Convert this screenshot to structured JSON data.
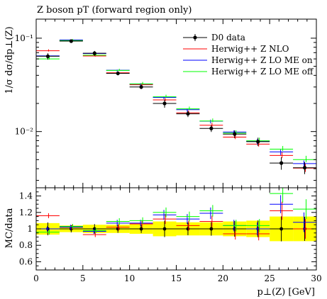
{
  "chart_data": [
    {
      "type": "scatter",
      "title": "Z boson pT (forward region only)",
      "ylabel": "1/σ dσ/dp⊥(Z)",
      "yscale": "log",
      "ylim": [
        0.0025,
        0.16
      ],
      "xlim": [
        0,
        30
      ],
      "yticks": [
        {
          "value": 0.1,
          "label": "10⁻¹"
        },
        {
          "value": 0.01,
          "label": "10⁻²"
        }
      ],
      "legend_position": "top-right",
      "bin_edges": [
        0,
        2.5,
        5,
        7.5,
        10,
        12.5,
        15,
        17.5,
        20,
        22.5,
        25,
        27.5,
        30
      ],
      "x": [
        1.25,
        3.75,
        6.25,
        8.75,
        11.25,
        13.75,
        16.25,
        18.75,
        21.25,
        23.75,
        26.25,
        28.75
      ],
      "series": [
        {
          "name": "D0 data",
          "color": "#000000",
          "marker": "dot",
          "values": [
            0.064,
            0.093,
            0.069,
            0.042,
            0.03,
            0.02,
            0.0155,
            0.0108,
            0.0094,
            0.0078,
            0.0046,
            0.0041
          ],
          "errors": [
            0.005,
            0.004,
            0.004,
            0.002,
            0.0015,
            0.002,
            0.0012,
            0.0009,
            0.0009,
            0.0008,
            0.0007,
            0.0006
          ]
        },
        {
          "name": "Herwig++ Z NLO",
          "color": "#ff0000",
          "values": [
            0.074,
            0.095,
            0.065,
            0.043,
            0.032,
            0.022,
            0.016,
            0.0118,
            0.0088,
            0.0074,
            0.0056,
            0.0041
          ],
          "errors": [
            0.002,
            0.002,
            0.0015,
            0.001,
            0.001,
            0.0008,
            0.0007,
            0.0006,
            0.0005,
            0.0005,
            0.0004,
            0.0004
          ]
        },
        {
          "name": "Herwig++ Z LO ME on",
          "color": "#0000ff",
          "values": [
            0.064,
            0.095,
            0.068,
            0.045,
            0.032,
            0.023,
            0.017,
            0.0128,
            0.0098,
            0.0078,
            0.006,
            0.0045
          ],
          "errors": [
            0.002,
            0.002,
            0.0015,
            0.001,
            0.001,
            0.0008,
            0.0007,
            0.0006,
            0.0005,
            0.0005,
            0.0004,
            0.0004
          ]
        },
        {
          "name": "Herwig++ Z LO ME off",
          "color": "#00ff00",
          "values": [
            0.061,
            0.096,
            0.067,
            0.046,
            0.033,
            0.024,
            0.0178,
            0.0132,
            0.0098,
            0.0081,
            0.0066,
            0.0051
          ],
          "errors": [
            0.002,
            0.002,
            0.0015,
            0.001,
            0.001,
            0.0008,
            0.0007,
            0.0006,
            0.0005,
            0.0005,
            0.0004,
            0.0004
          ]
        }
      ]
    },
    {
      "type": "scatter",
      "xlabel": "p⊥(Z) [GeV]",
      "ylabel": "MC/data",
      "xlim": [
        0,
        30
      ],
      "ylim": [
        0.5,
        1.5
      ],
      "xticks": [
        0,
        5,
        10,
        15,
        20,
        25,
        30
      ],
      "yticks": [
        0.6,
        0.8,
        1.0,
        1.2,
        1.4
      ],
      "ytick_labels": [
        "0.6",
        "0.8",
        "1",
        "1.2",
        "1.4"
      ],
      "reference_line": 1.0,
      "band_color": "#ffff00",
      "band": {
        "lower": [
          0.93,
          0.96,
          0.95,
          0.95,
          0.94,
          0.91,
          0.92,
          0.92,
          0.91,
          0.9,
          0.85,
          0.85
        ],
        "upper": [
          1.07,
          1.04,
          1.05,
          1.05,
          1.06,
          1.09,
          1.08,
          1.08,
          1.09,
          1.1,
          1.15,
          1.15
        ]
      },
      "series": [
        {
          "name": "Herwig++ Z NLO",
          "color": "#ff0000",
          "values": [
            1.16,
            1.02,
            0.93,
            1.02,
            1.06,
            1.12,
            1.04,
            1.09,
            0.94,
            0.94,
            1.22,
            1.0
          ],
          "errors": [
            0.03,
            0.03,
            0.03,
            0.04,
            0.04,
            0.06,
            0.06,
            0.07,
            0.07,
            0.08,
            0.11,
            0.12
          ]
        },
        {
          "name": "Herwig++ Z LO ME on",
          "color": "#0000ff",
          "values": [
            1.0,
            1.02,
            0.97,
            1.07,
            1.07,
            1.17,
            1.12,
            1.19,
            1.04,
            1.0,
            1.3,
            1.08
          ],
          "errors": [
            0.03,
            0.03,
            0.03,
            0.04,
            0.04,
            0.06,
            0.06,
            0.07,
            0.07,
            0.08,
            0.11,
            0.12
          ]
        },
        {
          "name": "Herwig++ Z LO ME off",
          "color": "#00ff00",
          "values": [
            0.96,
            1.03,
            0.98,
            1.09,
            1.1,
            1.2,
            1.15,
            1.22,
            1.04,
            1.04,
            1.43,
            1.24
          ],
          "errors": [
            0.03,
            0.03,
            0.03,
            0.04,
            0.04,
            0.06,
            0.06,
            0.07,
            0.07,
            0.08,
            0.11,
            0.12
          ]
        }
      ]
    }
  ]
}
